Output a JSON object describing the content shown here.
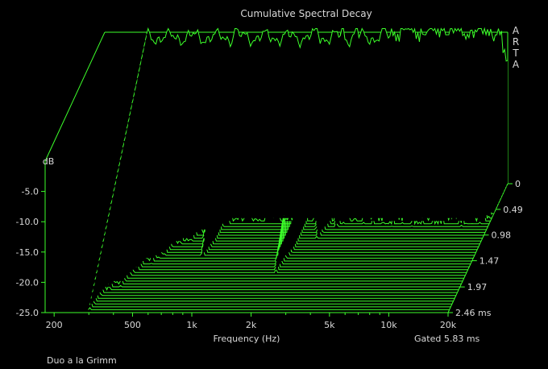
{
  "chart_data": {
    "type": "area",
    "title": "Cumulative Spectral Decay",
    "brand": "ARTA",
    "xlabel": "Frequency (Hz)",
    "ylabel": "dB",
    "x_scale": "log",
    "x_ticks": [
      {
        "value": 200,
        "label": "200"
      },
      {
        "value": 500,
        "label": "500"
      },
      {
        "value": 1000,
        "label": "1k"
      },
      {
        "value": 2000,
        "label": "2k"
      },
      {
        "value": 5000,
        "label": "5k"
      },
      {
        "value": 10000,
        "label": "10k"
      },
      {
        "value": 20000,
        "label": "20k"
      }
    ],
    "xlim": [
      180,
      20000
    ],
    "y_ticks": [
      {
        "value": 0,
        "label": "0"
      },
      {
        "value": -5,
        "label": "-5.0"
      },
      {
        "value": -10,
        "label": "-10.0"
      },
      {
        "value": -15,
        "label": "-15.0"
      },
      {
        "value": -20,
        "label": "-20.0"
      },
      {
        "value": -25,
        "label": "-25.0"
      }
    ],
    "ylim": [
      -25,
      0
    ],
    "time_ticks": [
      {
        "value": 0,
        "label": "0"
      },
      {
        "value": 0.49,
        "label": "0.49"
      },
      {
        "value": 0.98,
        "label": "0.98"
      },
      {
        "value": 1.47,
        "label": "1.47"
      },
      {
        "value": 1.97,
        "label": "1.97"
      },
      {
        "value": 2.46,
        "label": "2.46 ms"
      }
    ],
    "time_range_ms": [
      0,
      2.46
    ],
    "slices": 46,
    "gate_label": "Gated 5.83 ms",
    "footer": "Duo a la Grimm",
    "colors": {
      "trace": "#3cff2a",
      "background": "#000000",
      "text": "#d8d8d8"
    }
  }
}
